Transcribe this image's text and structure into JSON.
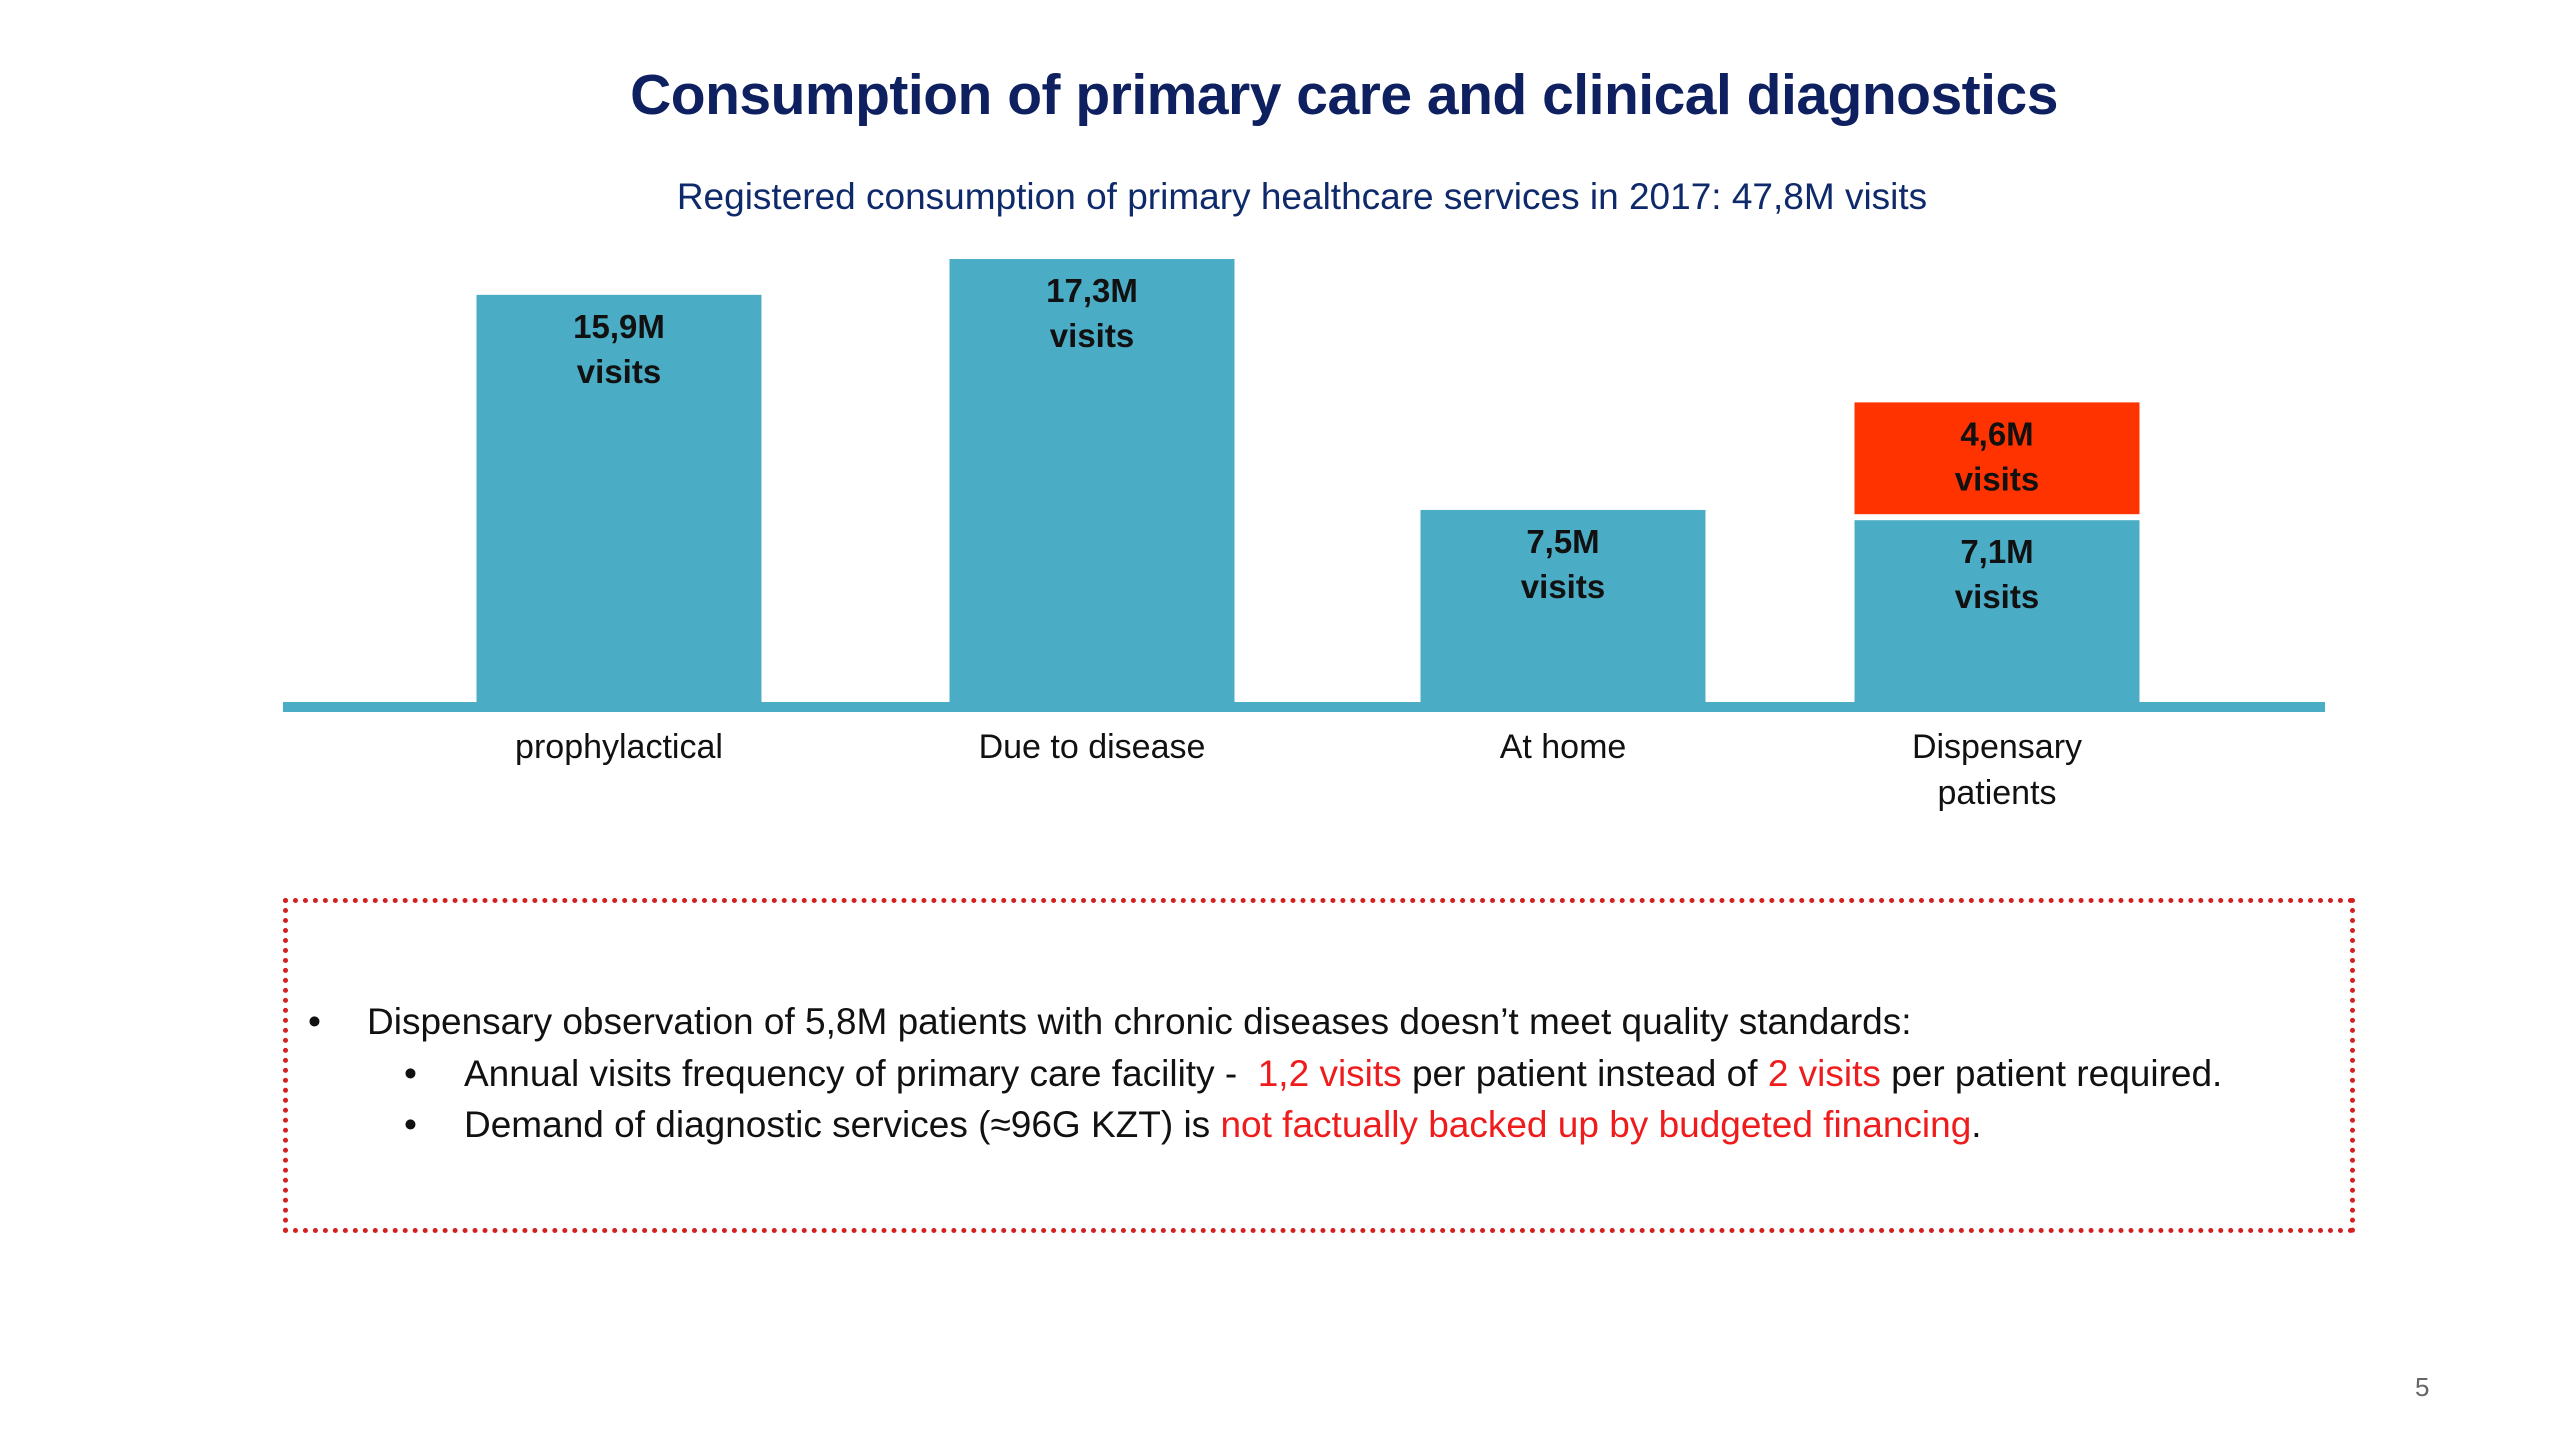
{
  "title": "Consumption of primary care and clinical diagnostics",
  "subtitle": "Registered consumption of primary healthcare services in 2017: 47,8M visits",
  "chart_data": {
    "type": "bar",
    "stacked": true,
    "categories": [
      "prophylactical",
      "Due to disease",
      "At home",
      "Dispensary patients"
    ],
    "series": [
      {
        "values": [
          15.9,
          17.3,
          7.5,
          7.1
        ],
        "labels": [
          "15,9M visits",
          "17,3M visits",
          "7,5M visits",
          "7,1M visits"
        ],
        "color": "#4bacc6"
      },
      {
        "values": [
          0,
          0,
          0,
          4.6
        ],
        "labels": [
          "",
          "",
          "",
          "4,6M visits"
        ],
        "color": "#ff3300"
      }
    ],
    "axis_color": "#4bacc6",
    "ylim": [
      0,
      17.3
    ]
  },
  "notes": {
    "main": "Dispensary observation of 5,8M patients with chronic diseases doesn’t meet quality standards:",
    "sub1": {
      "a": "Annual visits frequency of primary care facility -  ",
      "b": "1,2 visits",
      "c": " per patient instead of ",
      "d": "2 visits",
      "e": " per patient required."
    },
    "sub2": {
      "a": "Demand of diagnostic services (≈96G KZT) is ",
      "b": "not factually backed up by budgeted financing",
      "c": "."
    },
    "bullet": "•"
  },
  "page_number": "5"
}
